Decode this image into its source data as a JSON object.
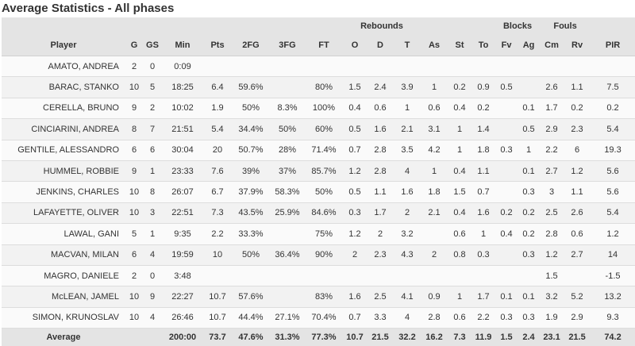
{
  "page": {
    "title": "Average Statistics - All phases"
  },
  "groups": {
    "rebounds": "Rebounds",
    "blocks": "Blocks",
    "fouls": "Fouls"
  },
  "headers": [
    "Player",
    "G",
    "GS",
    "Min",
    "Pts",
    "2FG",
    "3FG",
    "FT",
    "O",
    "D",
    "T",
    "As",
    "St",
    "To",
    "Fv",
    "Ag",
    "Cm",
    "Rv",
    "PIR"
  ],
  "rows": [
    [
      "AMATO, ANDREA",
      "2",
      "0",
      "0:09",
      "",
      "",
      "",
      "",
      "",
      "",
      "",
      "",
      "",
      "",
      "",
      "",
      "",
      "",
      ""
    ],
    [
      "BARAC, STANKO",
      "10",
      "5",
      "18:25",
      "6.4",
      "59.6%",
      "",
      "80%",
      "1.5",
      "2.4",
      "3.9",
      "1",
      "0.2",
      "0.9",
      "0.5",
      "",
      "2.6",
      "1.1",
      "7.5"
    ],
    [
      "CERELLA, BRUNO",
      "9",
      "2",
      "10:02",
      "1.9",
      "50%",
      "8.3%",
      "100%",
      "0.4",
      "0.6",
      "1",
      "0.6",
      "0.4",
      "0.2",
      "",
      "0.1",
      "1.7",
      "0.2",
      "0.2"
    ],
    [
      "CINCIARINI, ANDREA",
      "8",
      "7",
      "21:51",
      "5.4",
      "34.4%",
      "50%",
      "60%",
      "0.5",
      "1.6",
      "2.1",
      "3.1",
      "1",
      "1.4",
      "",
      "0.5",
      "2.9",
      "2.3",
      "5.4"
    ],
    [
      "GENTILE, ALESSANDRO",
      "6",
      "6",
      "30:04",
      "20",
      "50.7%",
      "28%",
      "71.4%",
      "0.7",
      "2.8",
      "3.5",
      "4.2",
      "1",
      "1.8",
      "0.3",
      "1",
      "2.2",
      "6",
      "19.3"
    ],
    [
      "HUMMEL, ROBBIE",
      "9",
      "1",
      "23:33",
      "7.6",
      "39%",
      "37%",
      "85.7%",
      "1.2",
      "2.8",
      "4",
      "1",
      "0.4",
      "1.1",
      "",
      "0.1",
      "2.7",
      "1.2",
      "5.6"
    ],
    [
      "JENKINS, CHARLES",
      "10",
      "8",
      "26:07",
      "6.7",
      "37.9%",
      "58.3%",
      "50%",
      "0.5",
      "1.1",
      "1.6",
      "1.8",
      "1.5",
      "0.7",
      "",
      "0.3",
      "3",
      "1.1",
      "5.6"
    ],
    [
      "LAFAYETTE, OLIVER",
      "10",
      "3",
      "22:51",
      "7.3",
      "43.5%",
      "25.9%",
      "84.6%",
      "0.3",
      "1.7",
      "2",
      "2.1",
      "0.4",
      "1.6",
      "0.2",
      "0.2",
      "2.5",
      "2.6",
      "5.4"
    ],
    [
      "LAWAL, GANI",
      "5",
      "1",
      "9:35",
      "2.2",
      "33.3%",
      "",
      "75%",
      "1.2",
      "2",
      "3.2",
      "",
      "0.6",
      "1",
      "0.4",
      "0.2",
      "2.8",
      "0.6",
      "1.2"
    ],
    [
      "MACVAN, MILAN",
      "6",
      "4",
      "19:59",
      "10",
      "50%",
      "36.4%",
      "90%",
      "2",
      "2.3",
      "4.3",
      "2",
      "0.8",
      "0.3",
      "",
      "0.3",
      "1.2",
      "2.7",
      "14"
    ],
    [
      "MAGRO, DANIELE",
      "2",
      "0",
      "3:48",
      "",
      "",
      "",
      "",
      "",
      "",
      "",
      "",
      "",
      "",
      "",
      "",
      "1.5",
      "",
      "-1.5"
    ],
    [
      "McLEAN, JAMEL",
      "10",
      "9",
      "22:27",
      "10.7",
      "57.6%",
      "",
      "83%",
      "1.6",
      "2.5",
      "4.1",
      "0.9",
      "1",
      "1.7",
      "0.1",
      "0.1",
      "3.2",
      "5.2",
      "13.2"
    ],
    [
      "SIMON, KRUNOSLAV",
      "10",
      "4",
      "26:46",
      "10.7",
      "44.4%",
      "27.1%",
      "70.4%",
      "0.7",
      "3.3",
      "4",
      "2.8",
      "0.6",
      "2.2",
      "0.3",
      "0.3",
      "1.9",
      "2.9",
      "9.3"
    ]
  ],
  "footer": [
    "Average",
    "",
    "",
    "200:00",
    "73.7",
    "47.6%",
    "31.3%",
    "77.3%",
    "10.7",
    "21.5",
    "32.2",
    "16.2",
    "7.3",
    "11.9",
    "1.5",
    "2.4",
    "23.1",
    "21.5",
    "74.2"
  ]
}
